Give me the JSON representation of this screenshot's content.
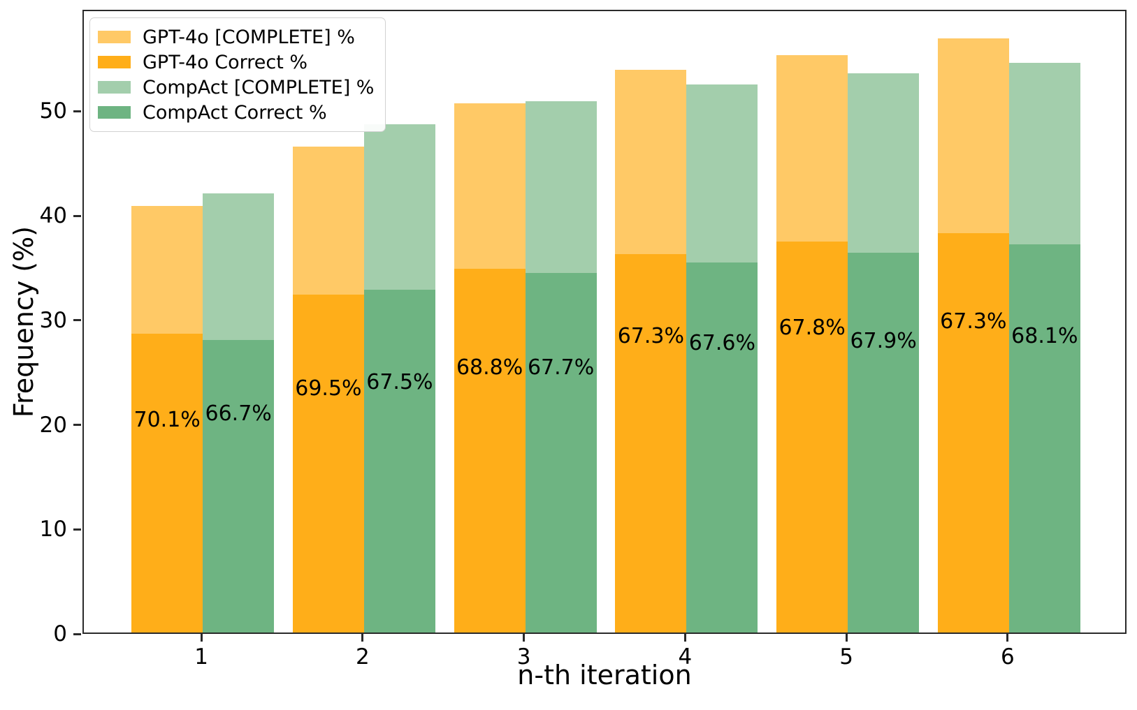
{
  "chart_data": {
    "type": "bar",
    "title": "",
    "xlabel": "n-th iteration",
    "ylabel": "Frequency (%)",
    "categories": [
      1,
      2,
      3,
      4,
      5,
      6
    ],
    "yticks": [
      0,
      10,
      20,
      30,
      40,
      50
    ],
    "ylim": [
      0,
      59.7
    ],
    "xlim": [
      0.2625,
      6.7375
    ],
    "grid": false,
    "legend_position": "upper-left",
    "axis_color": "#2a2a2a",
    "text_color": "#000000",
    "series": [
      {
        "name": "GPT-4o [COMPLETE] %",
        "color": "#FFC966",
        "group": "gpt4o",
        "layer": "back",
        "values": [
          40.8,
          46.5,
          50.6,
          53.8,
          55.2,
          56.8
        ]
      },
      {
        "name": "GPT-4o Correct %",
        "color": "#FFAE19",
        "group": "gpt4o",
        "layer": "front",
        "values": [
          28.6,
          32.3,
          34.8,
          36.2,
          37.4,
          38.2
        ]
      },
      {
        "name": "CompAct [COMPLETE] %",
        "color": "#A3CEAC",
        "group": "compact",
        "layer": "back",
        "values": [
          42.0,
          48.6,
          50.8,
          52.4,
          53.5,
          54.5
        ]
      },
      {
        "name": "CompAct Correct %",
        "color": "#6EB482",
        "group": "compact",
        "layer": "front",
        "values": [
          28.0,
          32.8,
          34.4,
          35.4,
          36.3,
          37.1
        ]
      }
    ],
    "annotations": [
      {
        "text": "70.1%",
        "x": 1,
        "side": "gpt4o",
        "label_y": 20.6
      },
      {
        "text": "66.7%",
        "x": 1,
        "side": "compact",
        "label_y": 21.2
      },
      {
        "text": "69.5%",
        "x": 2,
        "side": "gpt4o",
        "label_y": 23.6
      },
      {
        "text": "67.5%",
        "x": 2,
        "side": "compact",
        "label_y": 24.2
      },
      {
        "text": "68.8%",
        "x": 3,
        "side": "gpt4o",
        "label_y": 25.6
      },
      {
        "text": "67.7%",
        "x": 3,
        "side": "compact",
        "label_y": 25.6
      },
      {
        "text": "67.3%",
        "x": 4,
        "side": "gpt4o",
        "label_y": 28.6
      },
      {
        "text": "67.6%",
        "x": 4,
        "side": "compact",
        "label_y": 27.9
      },
      {
        "text": "67.8%",
        "x": 5,
        "side": "gpt4o",
        "label_y": 29.4
      },
      {
        "text": "67.9%",
        "x": 5,
        "side": "compact",
        "label_y": 28.1
      },
      {
        "text": "67.3%",
        "x": 6,
        "side": "gpt4o",
        "label_y": 30.0
      },
      {
        "text": "68.1%",
        "x": 6,
        "side": "compact",
        "label_y": 28.6
      }
    ]
  }
}
